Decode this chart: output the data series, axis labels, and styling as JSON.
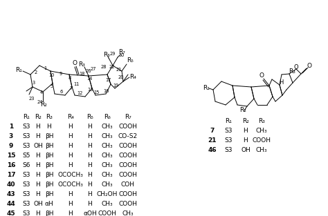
{
  "bg_color": "#ffffff",
  "table1_headers": [
    "",
    "R₁",
    "R₂",
    "R₃",
    "R₄",
    "R₅",
    "R₆",
    "R₇"
  ],
  "table1_rows": [
    [
      "1",
      "S3",
      "H",
      "H",
      "H",
      "H",
      "CH₃",
      "COOH"
    ],
    [
      "3",
      "S3",
      "H",
      "βH",
      "H",
      "H",
      "CH₃",
      "CO-S2"
    ],
    [
      "9",
      "S3",
      "OH",
      "βH",
      "H",
      "H",
      "CH₃",
      "COOH"
    ],
    [
      "15",
      "S5",
      "H",
      "βH",
      "H",
      "H",
      "CH₃",
      "COOH"
    ],
    [
      "16",
      "S6",
      "H",
      "βH",
      "H",
      "H",
      "CH₃",
      "COOH"
    ],
    [
      "17",
      "S3",
      "H",
      "βH",
      "OCOCH₃",
      "H",
      "CH₃",
      "COOH"
    ],
    [
      "40",
      "S3",
      "H",
      "βH",
      "OCOCH₃",
      "H",
      "CH₃",
      "COH"
    ],
    [
      "43",
      "S3",
      "H",
      "βH",
      "H",
      "H",
      "CH₂OH",
      "COOH"
    ],
    [
      "44",
      "S3",
      "OH",
      "αH",
      "H",
      "H",
      "CH₃",
      "COOH"
    ],
    [
      "45",
      "S3",
      "H",
      "βH",
      "H",
      "αOH",
      "COOH",
      "CH₃"
    ]
  ],
  "table2_headers": [
    "",
    "R₁",
    "R₂",
    "R₃"
  ],
  "table2_rows": [
    [
      "7",
      "S3",
      "H",
      "CH₃"
    ],
    [
      "21",
      "S3",
      "H",
      "COOH"
    ],
    [
      "46",
      "S3",
      "OH",
      "CH₃"
    ]
  ]
}
